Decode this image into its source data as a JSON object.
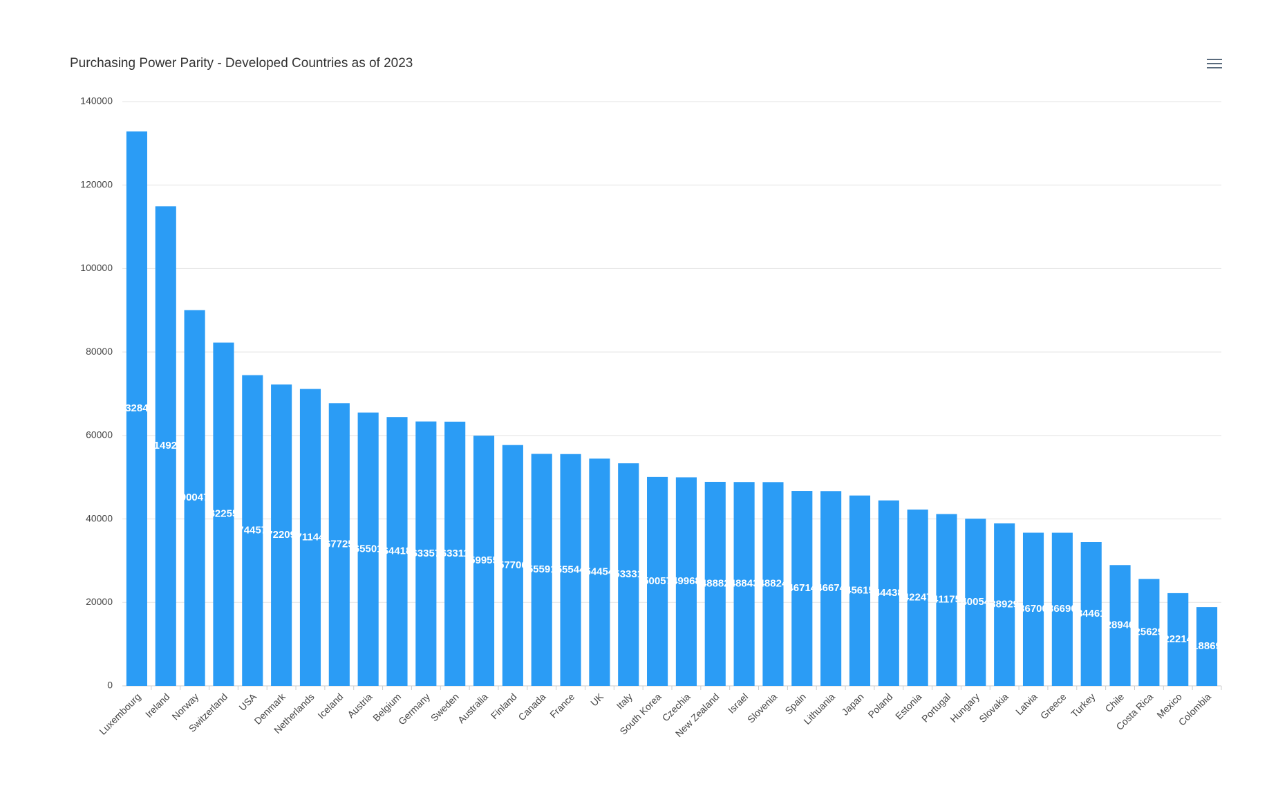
{
  "chart_data": {
    "type": "bar",
    "title": "Purchasing Power Parity - Developed Countries as of 2023",
    "categories": [
      "Luxembourg",
      "Ireland",
      "Norway",
      "Switzerland",
      "USA",
      "Denmark",
      "Netherlands",
      "Iceland",
      "Austria",
      "Belgium",
      "Germany",
      "Sweden",
      "Australia",
      "Finland",
      "Canada",
      "France",
      "UK",
      "Italy",
      "South Korea",
      "Czechia",
      "New Zealand",
      "Israel",
      "Slovenia",
      "Spain",
      "Lithuania",
      "Japan",
      "Poland",
      "Estonia",
      "Portugal",
      "Hungary",
      "Slovakia",
      "Latvia",
      "Greece",
      "Turkey",
      "Chile",
      "Costa Rica",
      "Mexico",
      "Colombia"
    ],
    "values": [
      132847,
      114924,
      90047,
      82255,
      74457,
      72209,
      71144,
      67725,
      65501,
      64418,
      63357,
      63311,
      59955,
      57706,
      55591,
      55544,
      54454,
      53331,
      50057,
      49968,
      48882,
      48843,
      48824,
      46714,
      46674,
      45615,
      44438,
      42247,
      41175,
      40054,
      38929,
      36700,
      36690,
      34461,
      28946,
      25629,
      22214,
      18869
    ],
    "color": "#2b9cf5",
    "ylim": [
      0,
      140000
    ],
    "yticks": [
      0,
      20000,
      40000,
      60000,
      80000,
      100000,
      120000,
      140000
    ],
    "grid": true
  }
}
